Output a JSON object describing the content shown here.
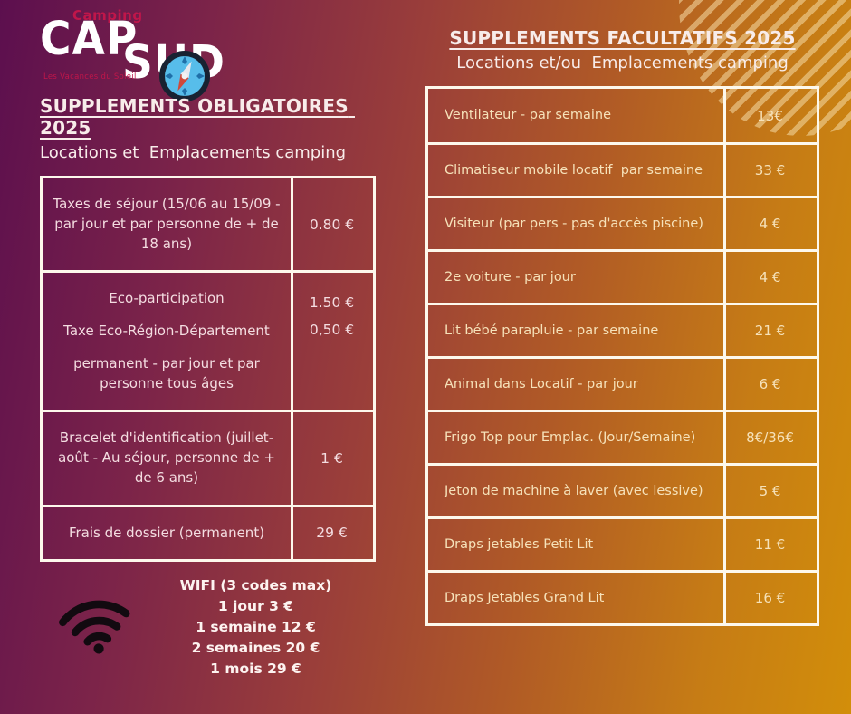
{
  "logo": {
    "brand_top": "Camping",
    "brand_cap": "CAP",
    "brand_sud": "SUD",
    "tagline": "Les Vacances du Soleil"
  },
  "left": {
    "title": "SUPPLEMENTS OBLIGATOIRES 2025",
    "subtitle": "Locations et  Emplacements camping",
    "rows": [
      {
        "paras": [
          "Taxes de séjour (15/06 au 15/09 - par jour et par personne de + de 18 ans)"
        ],
        "prices": [
          "0.80 €"
        ]
      },
      {
        "paras": [
          "Eco-participation",
          "Taxe Eco-Région-Département",
          "permanent - par jour et par personne tous âges"
        ],
        "prices": [
          "1.50 €",
          "0,50 €"
        ]
      },
      {
        "paras": [
          "Bracelet d'identification (juillet-août - Au séjour, personne de + de 6 ans)"
        ],
        "prices": [
          "1 €"
        ]
      },
      {
        "paras": [
          "Frais de dossier (permanent)"
        ],
        "prices": [
          "29 €"
        ]
      }
    ],
    "wifi": {
      "icon": "wifi-icon",
      "title": "WIFI (3 codes max)",
      "lines": [
        "1 jour 3 €",
        "1 semaine 12 €",
        "2 semaines 20 €",
        "1 mois 29 €"
      ]
    }
  },
  "right": {
    "title": "SUPPLEMENTS FACULTATIFS 2025",
    "subtitle": "Locations et/ou  Emplacements camping",
    "rows": [
      {
        "paras": [
          "Ventilateur - par semaine"
        ],
        "prices": [
          "13€"
        ]
      },
      {
        "paras": [
          "Climatiseur mobile locatif  par semaine"
        ],
        "prices": [
          "33 €"
        ]
      },
      {
        "paras": [
          "Visiteur (par pers - pas d'accès piscine)"
        ],
        "prices": [
          "4 €"
        ]
      },
      {
        "paras": [
          "2e voiture - par jour"
        ],
        "prices": [
          "4 €"
        ]
      },
      {
        "paras": [
          "Lit bébé parapluie - par semaine"
        ],
        "prices": [
          "21 €"
        ]
      },
      {
        "paras": [
          "Animal dans Locatif - par jour"
        ],
        "prices": [
          "6 €"
        ]
      },
      {
        "paras": [
          "Frigo Top pour Emplac. (Jour/Semaine)"
        ],
        "prices": [
          "8€/36€"
        ]
      },
      {
        "paras": [
          "Jeton de machine à laver (avec lessive)"
        ],
        "prices": [
          "5 €"
        ]
      },
      {
        "paras": [
          "Draps jetables Petit Lit"
        ],
        "prices": [
          "11 €"
        ]
      },
      {
        "paras": [
          "Draps Jetables Grand Lit"
        ],
        "prices": [
          "16 €"
        ]
      }
    ]
  },
  "colors": {
    "bg-c1": "#5c0f4e",
    "bg-c2": "#7c2449",
    "bg-c3": "#9a3e3a",
    "bg-c4": "#b05a26",
    "bg-c5": "#c67c15",
    "bg-c6": "#d28e0a",
    "border": "#fdf8ec",
    "heading": "#f8ecea",
    "text-left": "#f4dde1",
    "text-right": "#f6e2ba",
    "logo-red": "#c0164a",
    "wifi-text": "#fdf3f0",
    "wifi-icon-color": "#120a10",
    "compass-ring": "#182232",
    "compass-face": "#57bdea",
    "stripe": "rgba(246,220,166,0.55)"
  }
}
